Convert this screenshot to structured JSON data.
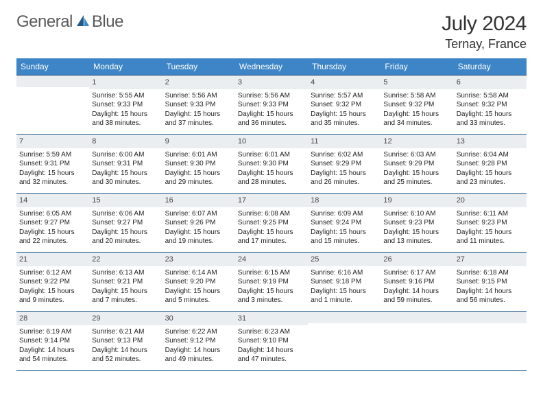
{
  "brand": {
    "part1": "General",
    "part2": "Blue"
  },
  "title": "July 2024",
  "location": "Ternay, France",
  "colors": {
    "header_bg": "#3d85c6",
    "header_text": "#ffffff",
    "daynum_bg": "#ebeef1",
    "row_divider": "#1f5a8a",
    "logo_icon": "#1f5a8a",
    "body_text": "#222222"
  },
  "fonts": {
    "title_size": 30,
    "location_size": 18,
    "header_size": 12,
    "cell_size": 10
  },
  "weekdays": [
    "Sunday",
    "Monday",
    "Tuesday",
    "Wednesday",
    "Thursday",
    "Friday",
    "Saturday"
  ],
  "weeks": [
    [
      null,
      {
        "n": "1",
        "sr": "Sunrise: 5:55 AM",
        "ss": "Sunset: 9:33 PM",
        "d1": "Daylight: 15 hours",
        "d2": "and 38 minutes."
      },
      {
        "n": "2",
        "sr": "Sunrise: 5:56 AM",
        "ss": "Sunset: 9:33 PM",
        "d1": "Daylight: 15 hours",
        "d2": "and 37 minutes."
      },
      {
        "n": "3",
        "sr": "Sunrise: 5:56 AM",
        "ss": "Sunset: 9:33 PM",
        "d1": "Daylight: 15 hours",
        "d2": "and 36 minutes."
      },
      {
        "n": "4",
        "sr": "Sunrise: 5:57 AM",
        "ss": "Sunset: 9:32 PM",
        "d1": "Daylight: 15 hours",
        "d2": "and 35 minutes."
      },
      {
        "n": "5",
        "sr": "Sunrise: 5:58 AM",
        "ss": "Sunset: 9:32 PM",
        "d1": "Daylight: 15 hours",
        "d2": "and 34 minutes."
      },
      {
        "n": "6",
        "sr": "Sunrise: 5:58 AM",
        "ss": "Sunset: 9:32 PM",
        "d1": "Daylight: 15 hours",
        "d2": "and 33 minutes."
      }
    ],
    [
      {
        "n": "7",
        "sr": "Sunrise: 5:59 AM",
        "ss": "Sunset: 9:31 PM",
        "d1": "Daylight: 15 hours",
        "d2": "and 32 minutes."
      },
      {
        "n": "8",
        "sr": "Sunrise: 6:00 AM",
        "ss": "Sunset: 9:31 PM",
        "d1": "Daylight: 15 hours",
        "d2": "and 30 minutes."
      },
      {
        "n": "9",
        "sr": "Sunrise: 6:01 AM",
        "ss": "Sunset: 9:30 PM",
        "d1": "Daylight: 15 hours",
        "d2": "and 29 minutes."
      },
      {
        "n": "10",
        "sr": "Sunrise: 6:01 AM",
        "ss": "Sunset: 9:30 PM",
        "d1": "Daylight: 15 hours",
        "d2": "and 28 minutes."
      },
      {
        "n": "11",
        "sr": "Sunrise: 6:02 AM",
        "ss": "Sunset: 9:29 PM",
        "d1": "Daylight: 15 hours",
        "d2": "and 26 minutes."
      },
      {
        "n": "12",
        "sr": "Sunrise: 6:03 AM",
        "ss": "Sunset: 9:29 PM",
        "d1": "Daylight: 15 hours",
        "d2": "and 25 minutes."
      },
      {
        "n": "13",
        "sr": "Sunrise: 6:04 AM",
        "ss": "Sunset: 9:28 PM",
        "d1": "Daylight: 15 hours",
        "d2": "and 23 minutes."
      }
    ],
    [
      {
        "n": "14",
        "sr": "Sunrise: 6:05 AM",
        "ss": "Sunset: 9:27 PM",
        "d1": "Daylight: 15 hours",
        "d2": "and 22 minutes."
      },
      {
        "n": "15",
        "sr": "Sunrise: 6:06 AM",
        "ss": "Sunset: 9:27 PM",
        "d1": "Daylight: 15 hours",
        "d2": "and 20 minutes."
      },
      {
        "n": "16",
        "sr": "Sunrise: 6:07 AM",
        "ss": "Sunset: 9:26 PM",
        "d1": "Daylight: 15 hours",
        "d2": "and 19 minutes."
      },
      {
        "n": "17",
        "sr": "Sunrise: 6:08 AM",
        "ss": "Sunset: 9:25 PM",
        "d1": "Daylight: 15 hours",
        "d2": "and 17 minutes."
      },
      {
        "n": "18",
        "sr": "Sunrise: 6:09 AM",
        "ss": "Sunset: 9:24 PM",
        "d1": "Daylight: 15 hours",
        "d2": "and 15 minutes."
      },
      {
        "n": "19",
        "sr": "Sunrise: 6:10 AM",
        "ss": "Sunset: 9:23 PM",
        "d1": "Daylight: 15 hours",
        "d2": "and 13 minutes."
      },
      {
        "n": "20",
        "sr": "Sunrise: 6:11 AM",
        "ss": "Sunset: 9:23 PM",
        "d1": "Daylight: 15 hours",
        "d2": "and 11 minutes."
      }
    ],
    [
      {
        "n": "21",
        "sr": "Sunrise: 6:12 AM",
        "ss": "Sunset: 9:22 PM",
        "d1": "Daylight: 15 hours",
        "d2": "and 9 minutes."
      },
      {
        "n": "22",
        "sr": "Sunrise: 6:13 AM",
        "ss": "Sunset: 9:21 PM",
        "d1": "Daylight: 15 hours",
        "d2": "and 7 minutes."
      },
      {
        "n": "23",
        "sr": "Sunrise: 6:14 AM",
        "ss": "Sunset: 9:20 PM",
        "d1": "Daylight: 15 hours",
        "d2": "and 5 minutes."
      },
      {
        "n": "24",
        "sr": "Sunrise: 6:15 AM",
        "ss": "Sunset: 9:19 PM",
        "d1": "Daylight: 15 hours",
        "d2": "and 3 minutes."
      },
      {
        "n": "25",
        "sr": "Sunrise: 6:16 AM",
        "ss": "Sunset: 9:18 PM",
        "d1": "Daylight: 15 hours",
        "d2": "and 1 minute."
      },
      {
        "n": "26",
        "sr": "Sunrise: 6:17 AM",
        "ss": "Sunset: 9:16 PM",
        "d1": "Daylight: 14 hours",
        "d2": "and 59 minutes."
      },
      {
        "n": "27",
        "sr": "Sunrise: 6:18 AM",
        "ss": "Sunset: 9:15 PM",
        "d1": "Daylight: 14 hours",
        "d2": "and 56 minutes."
      }
    ],
    [
      {
        "n": "28",
        "sr": "Sunrise: 6:19 AM",
        "ss": "Sunset: 9:14 PM",
        "d1": "Daylight: 14 hours",
        "d2": "and 54 minutes."
      },
      {
        "n": "29",
        "sr": "Sunrise: 6:21 AM",
        "ss": "Sunset: 9:13 PM",
        "d1": "Daylight: 14 hours",
        "d2": "and 52 minutes."
      },
      {
        "n": "30",
        "sr": "Sunrise: 6:22 AM",
        "ss": "Sunset: 9:12 PM",
        "d1": "Daylight: 14 hours",
        "d2": "and 49 minutes."
      },
      {
        "n": "31",
        "sr": "Sunrise: 6:23 AM",
        "ss": "Sunset: 9:10 PM",
        "d1": "Daylight: 14 hours",
        "d2": "and 47 minutes."
      },
      null,
      null,
      null
    ]
  ]
}
